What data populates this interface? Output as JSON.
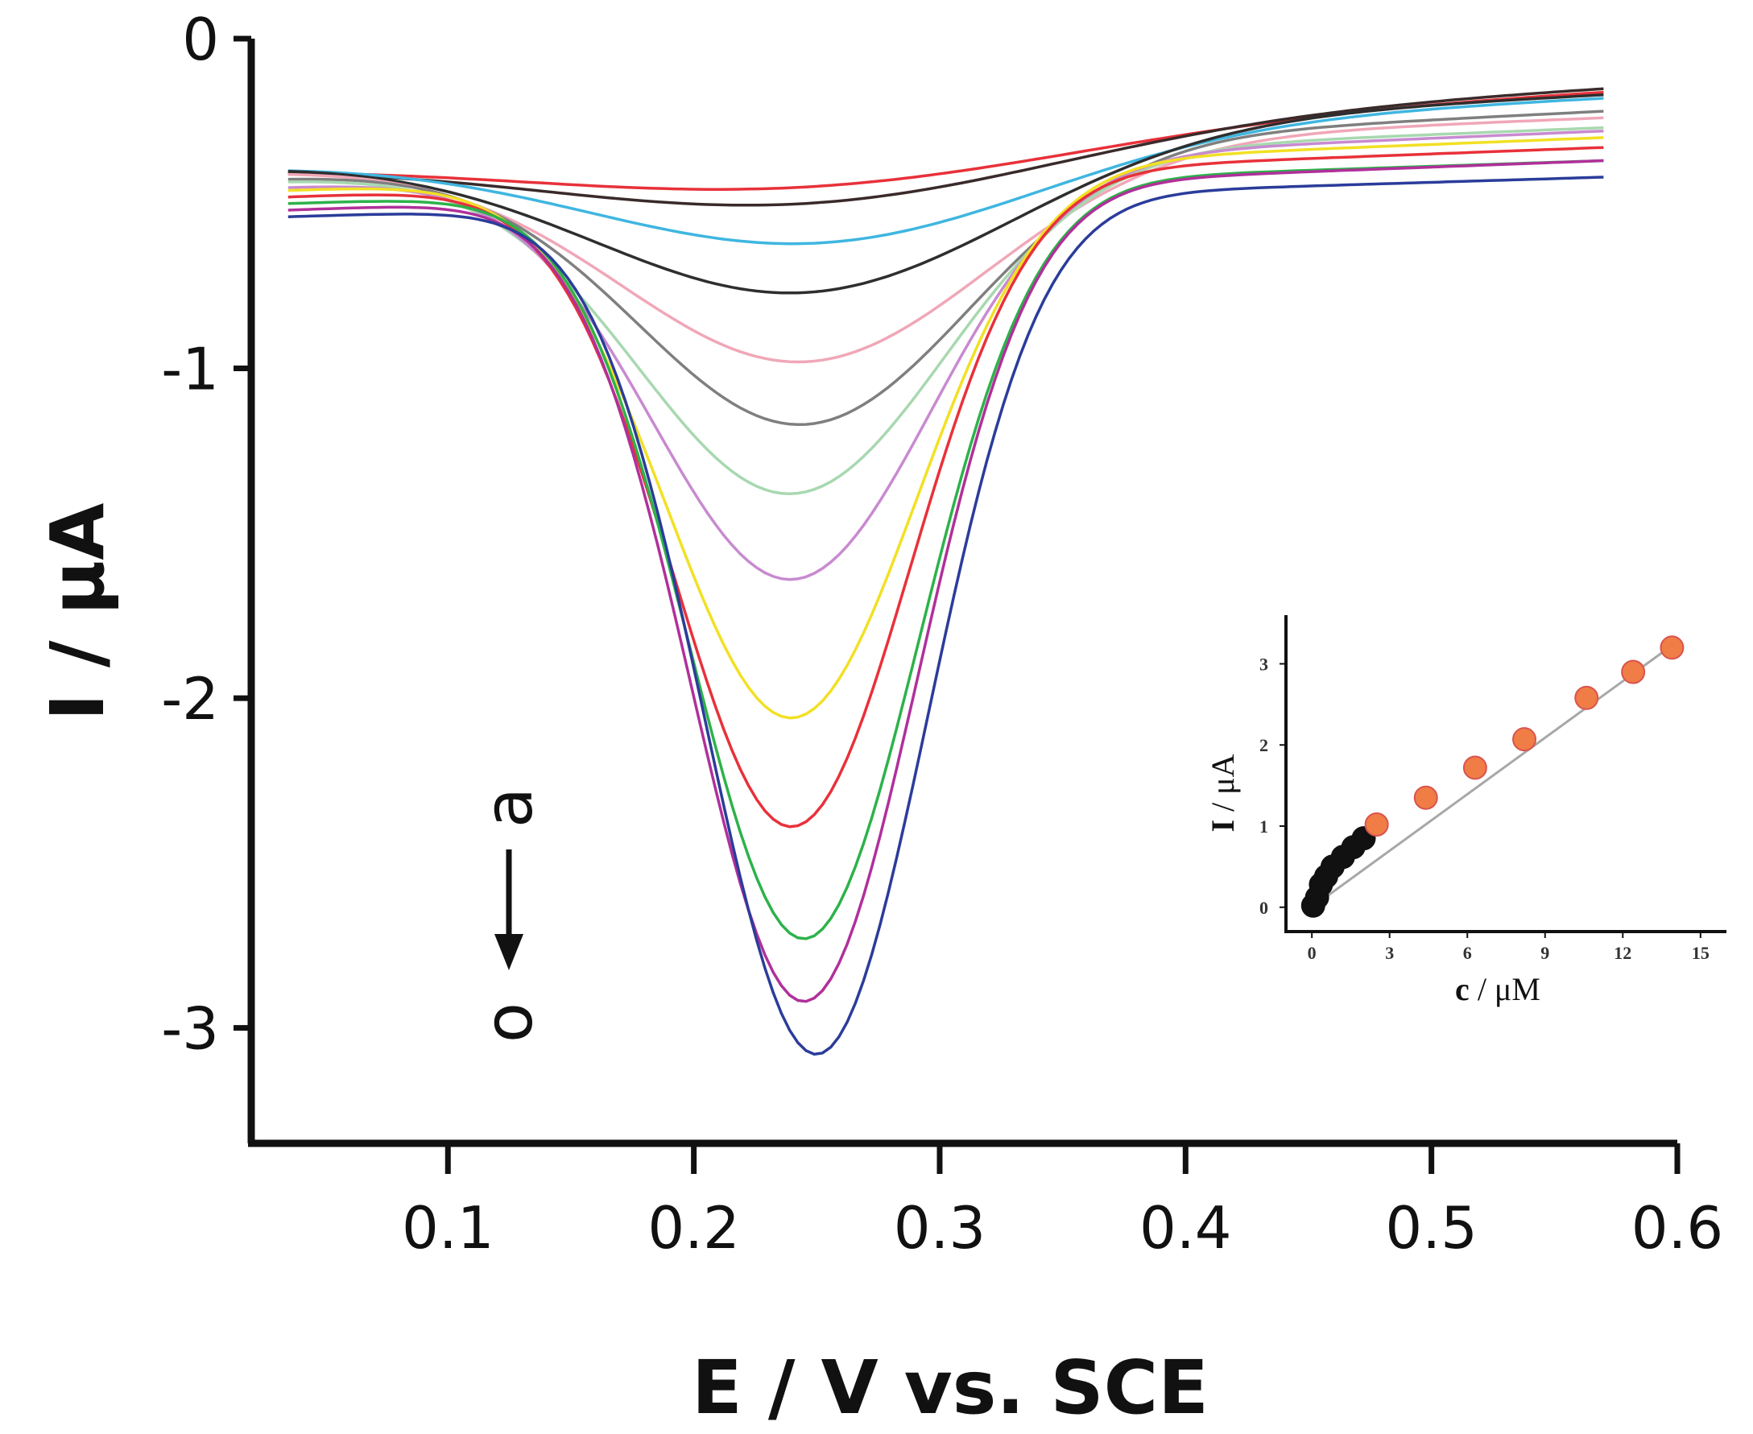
{
  "chart_data": [
    {
      "type": "line",
      "title": "",
      "xlabel": "E / V vs. SCE",
      "ylabel": "I / μA",
      "xlim": [
        0.02,
        0.6
      ],
      "ylim": [
        -3.35,
        0
      ],
      "xticks": [
        0.1,
        0.2,
        0.3,
        0.4,
        0.5,
        0.6
      ],
      "xtick_labels": [
        "0.1",
        "0.2",
        "0.3",
        "0.4",
        "0.5",
        "0.6"
      ],
      "yticks": [
        0,
        -1,
        -2,
        -3
      ],
      "ytick_labels": [
        "0",
        "-1",
        "-2",
        "-3"
      ],
      "grid": false,
      "annotation": {
        "start_label": "a",
        "end_label": "o",
        "direction": "down",
        "x": 0.12
      },
      "x_range_curves": [
        0.035,
        0.57
      ],
      "series": [
        {
          "name": "curve-1",
          "color": "#e8313a",
          "peak_x": 0.245,
          "peak_y": -0.45,
          "start_y": -0.38,
          "end_y": -0.16,
          "width": 0.16
        },
        {
          "name": "curve-2",
          "color": "#3a2a2a",
          "peak_x": 0.245,
          "peak_y": -0.5,
          "start_y": -0.38,
          "end_y": -0.15,
          "width": 0.15
        },
        {
          "name": "curve-3",
          "color": "#3fb6e0",
          "peak_x": 0.25,
          "peak_y": -0.62,
          "start_y": -0.38,
          "end_y": -0.18,
          "width": 0.13
        },
        {
          "name": "curve-4",
          "color": "#2e2e2e",
          "peak_x": 0.245,
          "peak_y": -0.77,
          "start_y": -0.38,
          "end_y": -0.17,
          "width": 0.12
        },
        {
          "name": "curve-5",
          "color": "#f0a7b8",
          "peak_x": 0.245,
          "peak_y": -0.98,
          "start_y": -0.4,
          "end_y": -0.24,
          "width": 0.105
        },
        {
          "name": "curve-6",
          "color": "#7f7f7f",
          "peak_x": 0.245,
          "peak_y": -1.17,
          "start_y": -0.42,
          "end_y": -0.22,
          "width": 0.095
        },
        {
          "name": "curve-7",
          "color": "#a8d8b0",
          "peak_x": 0.24,
          "peak_y": -1.38,
          "start_y": -0.43,
          "end_y": -0.27,
          "width": 0.088
        },
        {
          "name": "curve-8",
          "color": "#c88ad0",
          "peak_x": 0.24,
          "peak_y": -1.64,
          "start_y": -0.45,
          "end_y": -0.28,
          "width": 0.08
        },
        {
          "name": "curve-9",
          "color": "#f2e024",
          "peak_x": 0.24,
          "peak_y": -2.06,
          "start_y": -0.46,
          "end_y": -0.3,
          "width": 0.072
        },
        {
          "name": "curve-10",
          "color": "#e8313a",
          "peak_x": 0.24,
          "peak_y": -2.39,
          "start_y": -0.48,
          "end_y": -0.33,
          "width": 0.068
        },
        {
          "name": "curve-11",
          "color": "#2db24a",
          "peak_x": 0.245,
          "peak_y": -2.73,
          "start_y": -0.5,
          "end_y": -0.37,
          "width": 0.066
        },
        {
          "name": "curve-12",
          "color": "#b0309a",
          "peak_x": 0.245,
          "peak_y": -2.92,
          "start_y": -0.52,
          "end_y": -0.37,
          "width": 0.065
        },
        {
          "name": "curve-13",
          "color": "#2b3c9a",
          "peak_x": 0.25,
          "peak_y": -3.08,
          "start_y": -0.54,
          "end_y": -0.42,
          "width": 0.064
        }
      ]
    },
    {
      "type": "scatter",
      "title": "",
      "xlabel_bold": "c",
      "xlabel_rest": " / μM",
      "ylabel_bold": "I",
      "ylabel_rest": " / μA",
      "xlim": [
        -1,
        16
      ],
      "ylim": [
        -0.3,
        3.6
      ],
      "xticks": [
        0,
        3,
        6,
        9,
        12,
        15
      ],
      "xtick_labels": [
        "0",
        "3",
        "6",
        "9",
        "12",
        "15"
      ],
      "yticks": [
        0,
        1,
        2,
        3
      ],
      "ytick_labels": [
        "0",
        "1",
        "2",
        "3"
      ],
      "fit_line": {
        "x": [
          0,
          14
        ],
        "y": [
          0.0,
          3.25
        ],
        "color": "#a8a8a8"
      },
      "series": [
        {
          "name": "low-concentration",
          "color": "#111111",
          "x": [
            0.05,
            0.2,
            0.35,
            0.55,
            0.8,
            1.2,
            1.6,
            2.0
          ],
          "y": [
            0.02,
            0.12,
            0.28,
            0.38,
            0.5,
            0.62,
            0.74,
            0.85
          ]
        },
        {
          "name": "high-concentration",
          "color": "#ef7d45",
          "x": [
            2.5,
            4.4,
            6.3,
            8.2,
            10.6,
            12.4,
            13.9
          ],
          "y": [
            1.02,
            1.35,
            1.72,
            2.07,
            2.58,
            2.9,
            3.2
          ]
        }
      ]
    }
  ]
}
